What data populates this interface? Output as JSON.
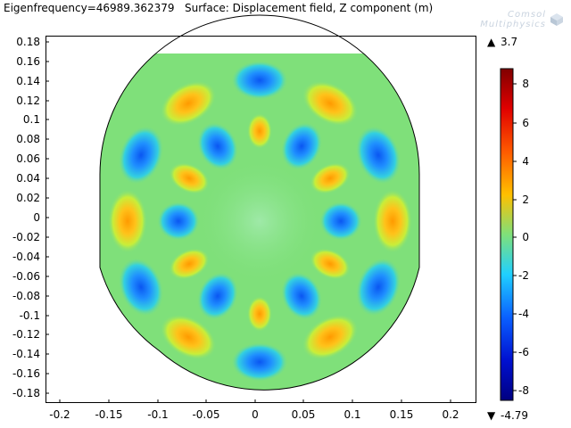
{
  "header": {
    "title": "Eigenfrequency=46989.362379   Surface: Displacement field, Z component (m)",
    "logo_line1": "Comsol",
    "logo_line2": "Multiphysics"
  },
  "plot": {
    "x_ticks": [
      "-0.2",
      "-0.15",
      "-0.1",
      "-0.05",
      "0",
      "0.05",
      "0.1",
      "0.15",
      "0.2"
    ],
    "y_ticks": [
      "0.18",
      "0.16",
      "0.14",
      "0.12",
      "0.1",
      "0.08",
      "0.06",
      "0.04",
      "0.02",
      "0",
      "-0.02",
      "-0.04",
      "-0.06",
      "-0.08",
      "-0.1",
      "-0.12",
      "-0.14",
      "-0.16",
      "-0.18"
    ]
  },
  "colorbar": {
    "max_label": "3.7",
    "min_label": "-4.79",
    "tick_labels": [
      "8",
      "6",
      "4",
      "2",
      "0",
      "-2",
      "-4",
      "-6",
      "-8"
    ],
    "max_marker": "▲",
    "min_marker": "▼"
  },
  "colors": {
    "background_field": "#7fe07a",
    "high": "#ffc21a",
    "low": "#1f8fff"
  }
}
